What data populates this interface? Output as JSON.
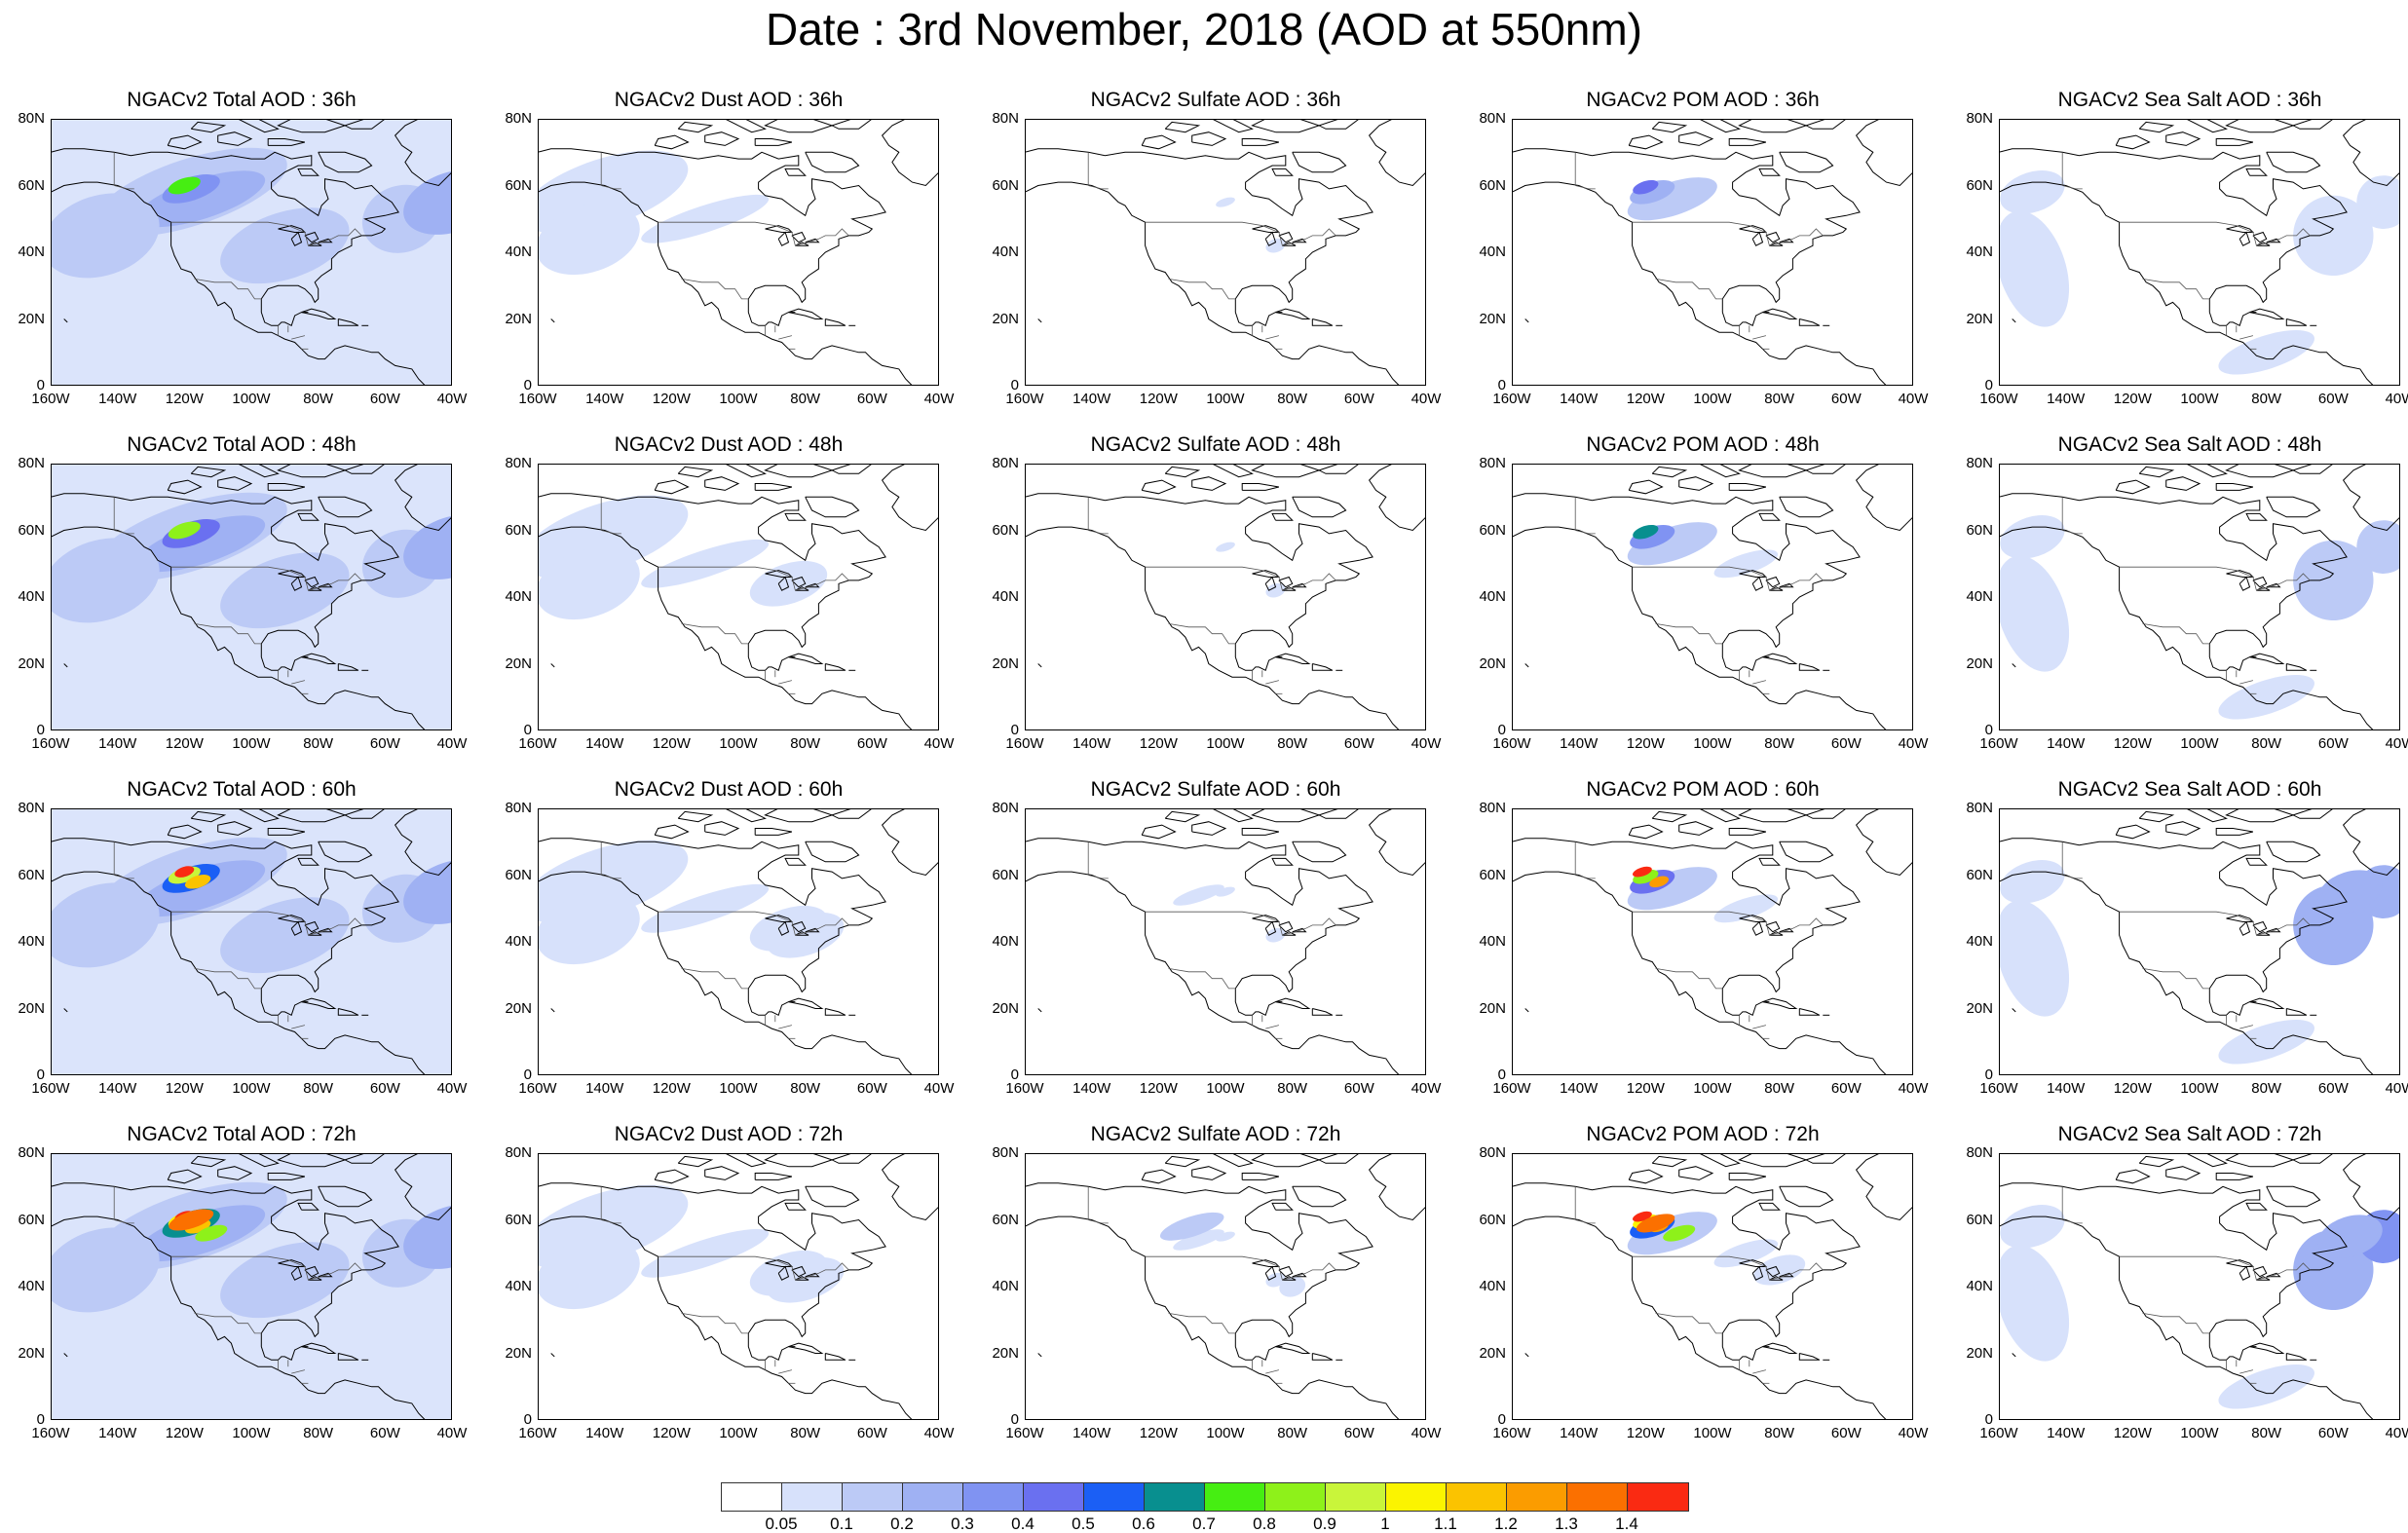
{
  "title": "Date : 3rd November, 2018 (AOD at 550nm)",
  "y_ticks": [
    "80N",
    "60N",
    "40N",
    "20N",
    "0"
  ],
  "x_ticks": [
    "160W",
    "140W",
    "120W",
    "100W",
    "80W",
    "60W",
    "40W"
  ],
  "panels": [
    [
      "NGACv2 Total AOD : 36h",
      "NGACv2 Dust AOD : 36h",
      "NGACv2 Sulfate AOD : 36h",
      "NGACv2 POM AOD : 36h",
      "NGACv2 Sea Salt AOD : 36h"
    ],
    [
      "NGACv2 Total AOD : 48h",
      "NGACv2 Dust AOD : 48h",
      "NGACv2 Sulfate AOD : 48h",
      "NGACv2 POM AOD : 48h",
      "NGACv2 Sea Salt AOD : 48h"
    ],
    [
      "NGACv2 Total AOD : 60h",
      "NGACv2 Dust AOD : 60h",
      "NGACv2 Sulfate AOD : 60h",
      "NGACv2 POM AOD : 60h",
      "NGACv2 Sea Salt AOD : 60h"
    ],
    [
      "NGACv2 Total AOD : 72h",
      "NGACv2 Dust AOD : 72h",
      "NGACv2 Sulfate AOD : 72h",
      "NGACv2 POM AOD : 72h",
      "NGACv2 Sea Salt  AOD : 72h"
    ]
  ],
  "legend": {
    "labels": [
      "0.05",
      "0.1",
      "0.2",
      "0.3",
      "0.4",
      "0.5",
      "0.6",
      "0.7",
      "0.8",
      "0.9",
      "1",
      "1.1",
      "1.2",
      "1.3",
      "1.4"
    ],
    "colors": [
      "#ffffff",
      "#d7e1fb",
      "#bccaf6",
      "#9fb1f3",
      "#8093f2",
      "#6a70f0",
      "#1b5ff5",
      "#088f8f",
      "#46ee12",
      "#8ef11a",
      "#c9f53a",
      "#fbf400",
      "#fbc300",
      "#fb9c00",
      "#fb7000",
      "#fa2a12"
    ]
  }
}
